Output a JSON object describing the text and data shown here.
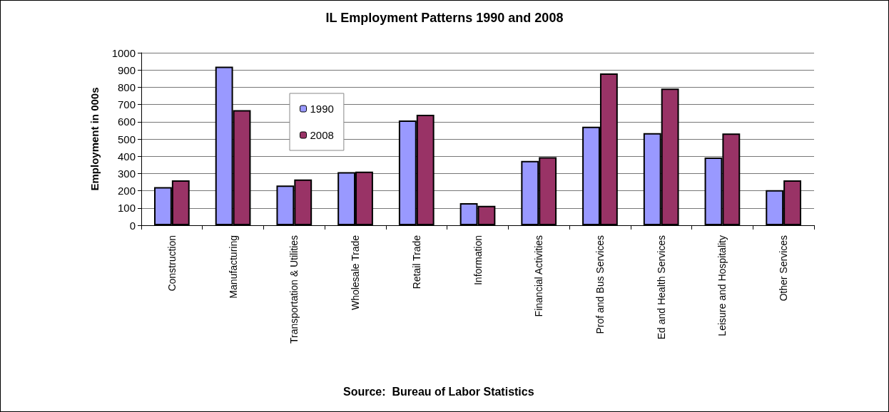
{
  "chart_data": {
    "type": "bar",
    "title": "IL Employment Patterns 1990 and 2008",
    "ylabel": "Employment in 000s",
    "categories": [
      "Construction",
      "Manufacturing",
      "Transportation & Utilities",
      "Wholesale Trade",
      "Retail Trade",
      "Information",
      "Financial Activities",
      "Prof and Bus Services",
      "Ed and Health Services",
      "Leisure and Hospitality",
      "Other Services"
    ],
    "series": [
      {
        "name": "1990",
        "color": "#9999ff",
        "values": [
          221,
          919,
          230,
          308,
          607,
          128,
          373,
          571,
          534,
          393,
          204
        ]
      },
      {
        "name": "2008",
        "color": "#993366",
        "values": [
          260,
          667,
          265,
          311,
          641,
          113,
          395,
          880,
          792,
          532,
          260
        ]
      }
    ],
    "ylim": [
      0,
      1000
    ],
    "yticks": [
      0,
      100,
      200,
      300,
      400,
      500,
      600,
      700,
      800,
      900,
      1000
    ],
    "grid": "y",
    "legend": "top left",
    "annotations": [
      "Source:  Bureau of Labor Statistics"
    ]
  }
}
